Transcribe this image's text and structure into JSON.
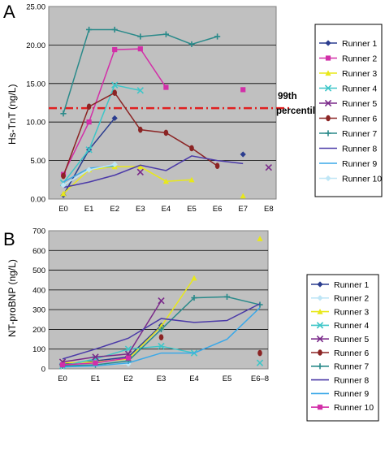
{
  "panels": [
    {
      "letter": "A",
      "chart_data": {
        "type": "line",
        "ylabel": "Hs-TnT (ng/L)",
        "ylim": [
          0,
          25
        ],
        "yticks": [
          "0.00",
          "5.00",
          "10.00",
          "15.00",
          "20.00",
          "25.00"
        ],
        "categories": [
          "E0",
          "E1",
          "E2",
          "E3",
          "E4",
          "E5",
          "E6",
          "E7",
          "E8"
        ],
        "grid": "horizontal",
        "background": "#c0c0c0",
        "reference_line": {
          "value": 11.8,
          "label_line1": "99th",
          "label_line2": "percentile",
          "color": "#e02020"
        },
        "legend_position": "right",
        "series": [
          {
            "name": "Runner 1",
            "color": "#2b3d8f",
            "marker": "diamond",
            "points": [
              [
                0,
                0.5
              ],
              [
                1,
                6.4
              ],
              [
                2,
                10.5
              ],
              [
                7,
                5.8
              ]
            ]
          },
          {
            "name": "Runner 2",
            "color": "#d22fa8",
            "marker": "square",
            "points": [
              [
                0,
                3.2
              ],
              [
                1,
                10.0
              ],
              [
                2,
                19.4
              ],
              [
                3,
                19.5
              ],
              [
                4,
                14.5
              ],
              [
                7,
                14.2
              ]
            ]
          },
          {
            "name": "Runner 3",
            "color": "#e8e81a",
            "marker": "triangle",
            "points": [
              [
                0,
                0.7
              ],
              [
                1,
                3.8
              ],
              [
                2,
                4.2
              ],
              [
                3,
                4.2
              ],
              [
                4,
                2.3
              ],
              [
                5,
                2.5
              ],
              [
                7,
                0.4
              ]
            ]
          },
          {
            "name": "Runner 4",
            "color": "#3ec6c8",
            "marker": "x",
            "points": [
              [
                0,
                2.1
              ],
              [
                1,
                6.4
              ],
              [
                2,
                14.8
              ],
              [
                3,
                14.1
              ]
            ]
          },
          {
            "name": "Runner 5",
            "color": "#7a2a8a",
            "marker": "x",
            "points": [
              [
                3,
                3.5
              ],
              [
                8,
                4.1
              ]
            ]
          },
          {
            "name": "Runner 6",
            "color": "#8b2424",
            "marker": "circle",
            "points": [
              [
                0,
                3.0
              ],
              [
                1,
                12.0
              ],
              [
                2,
                13.8
              ],
              [
                3,
                9.0
              ],
              [
                4,
                8.6
              ],
              [
                5,
                6.6
              ],
              [
                6,
                4.3
              ]
            ]
          },
          {
            "name": "Runner 7",
            "color": "#2a8a8a",
            "marker": "plus",
            "points": [
              [
                0,
                11.1
              ],
              [
                1,
                22.0
              ],
              [
                2,
                22.0
              ],
              [
                3,
                21.1
              ],
              [
                4,
                21.4
              ],
              [
                5,
                20.1
              ],
              [
                6,
                21.1
              ]
            ]
          },
          {
            "name": "Runner 8",
            "color": "#4b3aa8",
            "marker": "line",
            "points": [
              [
                0,
                1.5
              ],
              [
                1,
                2.2
              ],
              [
                2,
                3.1
              ],
              [
                3,
                4.4
              ],
              [
                4,
                3.7
              ],
              [
                5,
                5.6
              ],
              [
                6,
                5.0
              ],
              [
                7,
                4.6
              ]
            ]
          },
          {
            "name": "Runner 9",
            "color": "#3aa8e8",
            "marker": "line",
            "points": [
              [
                0,
                2.2
              ],
              [
                1,
                4.0
              ],
              [
                2,
                4.3
              ]
            ]
          },
          {
            "name": "Runner 10",
            "color": "#bfe6f6",
            "marker": "diamond",
            "points": [
              [
                0,
                1.8
              ],
              [
                1,
                3.8
              ],
              [
                2,
                4.5
              ]
            ]
          }
        ]
      }
    },
    {
      "letter": "B",
      "chart_data": {
        "type": "line",
        "ylabel": "NT-proBNP (ng/L)",
        "ylim": [
          0,
          700
        ],
        "yticks": [
          "0",
          "100",
          "200",
          "300",
          "400",
          "500",
          "600",
          "700"
        ],
        "categories": [
          "E0",
          "E1",
          "E2",
          "E3",
          "E4",
          "E5",
          "E6–8"
        ],
        "grid": "horizontal",
        "background": "#c0c0c0",
        "legend_position": "inside-right",
        "series": [
          {
            "name": "Runner 1",
            "color": "#2b3d8f",
            "marker": "diamond",
            "points": [
              [
                0,
                25
              ],
              [
                1,
                40
              ],
              [
                2,
                60
              ],
              [
                3,
                220
              ]
            ]
          },
          {
            "name": "Runner 2",
            "color": "#bfe6f6",
            "marker": "diamond",
            "points": [
              [
                0,
                10
              ],
              [
                1,
                20
              ],
              [
                2,
                25
              ]
            ]
          },
          {
            "name": "Runner 3",
            "color": "#e8e81a",
            "marker": "triangle",
            "points": [
              [
                0,
                30
              ],
              [
                1,
                35
              ],
              [
                2,
                50
              ],
              [
                3,
                215
              ],
              [
                4,
                460
              ],
              [
                6,
                660
              ]
            ]
          },
          {
            "name": "Runner 4",
            "color": "#3ec6c8",
            "marker": "x",
            "points": [
              [
                0,
                15
              ],
              [
                1,
                50
              ],
              [
                2,
                100
              ],
              [
                3,
                115
              ],
              [
                4,
                80
              ],
              [
                6,
                30
              ]
            ]
          },
          {
            "name": "Runner 5",
            "color": "#7a2a8a",
            "marker": "x",
            "points": [
              [
                0,
                35
              ],
              [
                1,
                60
              ],
              [
                2,
                75
              ],
              [
                3,
                345
              ]
            ]
          },
          {
            "name": "Runner 6",
            "color": "#8b2424",
            "marker": "circle",
            "points": [
              [
                3,
                160
              ],
              [
                6,
                80
              ]
            ]
          },
          {
            "name": "Runner 7",
            "color": "#2a8a8a",
            "marker": "plus",
            "points": [
              [
                0,
                15
              ],
              [
                1,
                20
              ],
              [
                2,
                40
              ],
              [
                3,
                200
              ],
              [
                4,
                360
              ],
              [
                5,
                365
              ],
              [
                6,
                325
              ]
            ]
          },
          {
            "name": "Runner 8",
            "color": "#4b3aa8",
            "marker": "line",
            "points": [
              [
                0,
                50
              ],
              [
                1,
                100
              ],
              [
                2,
                155
              ],
              [
                3,
                255
              ],
              [
                4,
                235
              ],
              [
                5,
                245
              ],
              [
                6,
                330
              ]
            ]
          },
          {
            "name": "Runner 9",
            "color": "#3aa8e8",
            "marker": "line",
            "points": [
              [
                0,
                10
              ],
              [
                1,
                15
              ],
              [
                2,
                30
              ],
              [
                3,
                80
              ],
              [
                4,
                80
              ],
              [
                5,
                150
              ],
              [
                6,
                310
              ]
            ]
          },
          {
            "name": "Runner 10",
            "color": "#d22fa8",
            "marker": "square",
            "points": [
              [
                0,
                20
              ],
              [
                1,
                30
              ],
              [
                2,
                55
              ]
            ]
          }
        ]
      }
    }
  ]
}
